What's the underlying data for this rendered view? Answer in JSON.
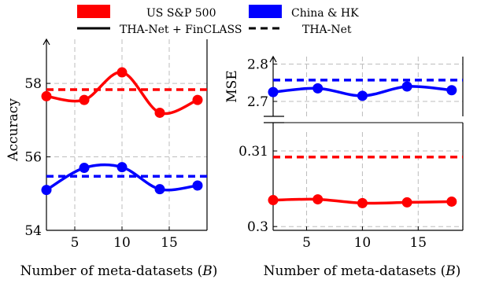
{
  "colors": {
    "us": "#ff0000",
    "china": "#0000ff"
  },
  "legend": {
    "us_label": "US S&P 500",
    "china_label": "China & HK",
    "solid_label": "THA-Net + FinCLASS",
    "dashed_label": "THA-Net"
  },
  "chart_data": [
    {
      "type": "line",
      "xlabel": "Number of meta-datasets (B)",
      "ylabel": "Accuracy",
      "xlim": [
        2,
        19
      ],
      "ylim": [
        54,
        59.2
      ],
      "xticks": [
        "5",
        "10",
        "15"
      ],
      "yticks": [
        "54",
        "56",
        "58"
      ],
      "grid": true,
      "x": [
        2,
        6,
        10,
        14,
        18
      ],
      "series": [
        {
          "name": "US S&P 500",
          "method": "THA-Net + FinCLASS",
          "style": "solid",
          "color": "#ff0000",
          "values": [
            57.65,
            57.55,
            58.3,
            57.2,
            57.55
          ]
        },
        {
          "name": "US S&P 500",
          "method": "THA-Net",
          "style": "dashed",
          "color": "#ff0000",
          "constant": 57.83
        },
        {
          "name": "China & HK",
          "method": "THA-Net + FinCLASS",
          "style": "solid",
          "color": "#0000ff",
          "values": [
            55.1,
            55.7,
            55.72,
            55.12,
            55.22
          ]
        },
        {
          "name": "China & HK",
          "method": "THA-Net",
          "style": "dashed",
          "color": "#0000ff",
          "constant": 55.47
        }
      ]
    },
    {
      "type": "line",
      "xlabel": "Number of meta-datasets (B)",
      "ylabel": "MSE",
      "broken_axis": true,
      "xlim": [
        2,
        19
      ],
      "upper": {
        "ylim": [
          2.66,
          2.82
        ],
        "yticks": [
          "2.7",
          "2.8"
        ]
      },
      "lower": {
        "ylim": [
          0.2995,
          0.3125
        ],
        "yticks": [
          "0.3",
          "0.31"
        ]
      },
      "xticks": [
        "5",
        "10",
        "15"
      ],
      "grid": true,
      "x": [
        2,
        6,
        10,
        14,
        18
      ],
      "series": [
        {
          "name": "China & HK",
          "method": "THA-Net + FinCLASS",
          "style": "solid",
          "color": "#0000ff",
          "panel": "upper",
          "values": [
            2.725,
            2.735,
            2.715,
            2.74,
            2.73
          ]
        },
        {
          "name": "China & HK",
          "method": "THA-Net",
          "style": "dashed",
          "color": "#0000ff",
          "panel": "upper",
          "constant": 2.757
        },
        {
          "name": "US S&P 500",
          "method": "THA-Net + FinCLASS",
          "style": "solid",
          "color": "#ff0000",
          "panel": "lower",
          "values": [
            0.3035,
            0.3036,
            0.3031,
            0.3032,
            0.3033
          ]
        },
        {
          "name": "US S&P 500",
          "method": "THA-Net",
          "style": "dashed",
          "color": "#ff0000",
          "panel": "lower",
          "constant": 0.3092
        }
      ]
    }
  ]
}
